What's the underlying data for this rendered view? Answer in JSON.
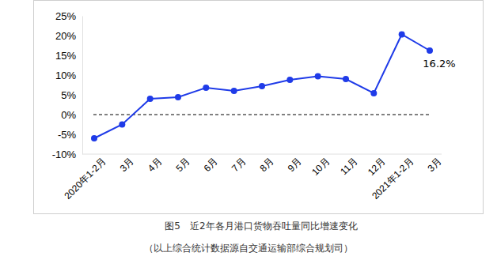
{
  "chart_data": {
    "type": "line",
    "title": "图5　近2年各月港口货物吞吐量同比增速变化",
    "subtitle": "（以上综合统计数据源自交通运输部综合规划司）",
    "categories": [
      "2020年1-2月",
      "3月",
      "4月",
      "5月",
      "6月",
      "7月",
      "8月",
      "9月",
      "10月",
      "11月",
      "12月",
      "2021年1-2月",
      "3月"
    ],
    "values": [
      -6.0,
      -2.5,
      4.0,
      4.4,
      6.8,
      6.0,
      7.2,
      8.8,
      9.7,
      9.0,
      5.4,
      20.3,
      16.2
    ],
    "value_labels": [
      null,
      null,
      null,
      null,
      null,
      null,
      null,
      null,
      null,
      null,
      null,
      null,
      "16.2%"
    ],
    "data_labels": true,
    "color": "#1f3be8",
    "marker": "circle",
    "baseline": 0,
    "ylim": [
      -10,
      25
    ],
    "yticks": [
      {
        "value": -10,
        "label": "-10%"
      },
      {
        "value": -5,
        "label": "-5%"
      },
      {
        "value": 0,
        "label": "0%"
      },
      {
        "value": 5,
        "label": "5%"
      },
      {
        "value": 10,
        "label": "10%"
      },
      {
        "value": 15,
        "label": "15%"
      },
      {
        "value": 20,
        "label": "20%"
      },
      {
        "value": 25,
        "label": "25%"
      }
    ],
    "grid": false
  }
}
